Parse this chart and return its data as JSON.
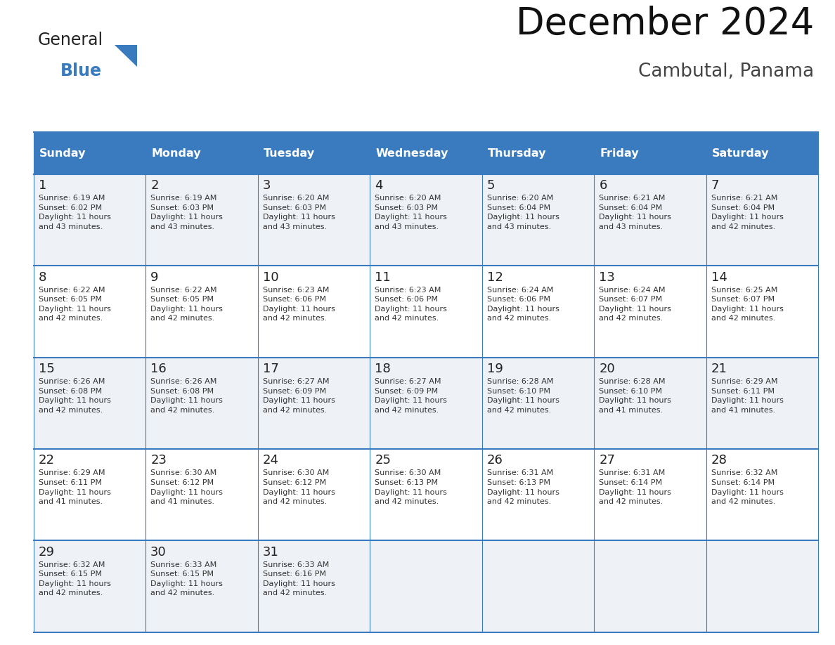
{
  "title": "December 2024",
  "subtitle": "Cambutal, Panama",
  "days_of_week": [
    "Sunday",
    "Monday",
    "Tuesday",
    "Wednesday",
    "Thursday",
    "Friday",
    "Saturday"
  ],
  "header_bg": "#3a7bbf",
  "header_text": "#ffffff",
  "row_bg_odd": "#eef2f7",
  "row_bg_even": "#ffffff",
  "cell_text_color": "#222222",
  "day_num_color": "#222222",
  "grid_line_color": "#3a7bbf",
  "cal_data": [
    [
      {
        "day": 1,
        "sunrise": "6:19 AM",
        "sunset": "6:02 PM",
        "daylight": "11 hours\nand 43 minutes."
      },
      {
        "day": 2,
        "sunrise": "6:19 AM",
        "sunset": "6:03 PM",
        "daylight": "11 hours\nand 43 minutes."
      },
      {
        "day": 3,
        "sunrise": "6:20 AM",
        "sunset": "6:03 PM",
        "daylight": "11 hours\nand 43 minutes."
      },
      {
        "day": 4,
        "sunrise": "6:20 AM",
        "sunset": "6:03 PM",
        "daylight": "11 hours\nand 43 minutes."
      },
      {
        "day": 5,
        "sunrise": "6:20 AM",
        "sunset": "6:04 PM",
        "daylight": "11 hours\nand 43 minutes."
      },
      {
        "day": 6,
        "sunrise": "6:21 AM",
        "sunset": "6:04 PM",
        "daylight": "11 hours\nand 43 minutes."
      },
      {
        "day": 7,
        "sunrise": "6:21 AM",
        "sunset": "6:04 PM",
        "daylight": "11 hours\nand 42 minutes."
      }
    ],
    [
      {
        "day": 8,
        "sunrise": "6:22 AM",
        "sunset": "6:05 PM",
        "daylight": "11 hours\nand 42 minutes."
      },
      {
        "day": 9,
        "sunrise": "6:22 AM",
        "sunset": "6:05 PM",
        "daylight": "11 hours\nand 42 minutes."
      },
      {
        "day": 10,
        "sunrise": "6:23 AM",
        "sunset": "6:06 PM",
        "daylight": "11 hours\nand 42 minutes."
      },
      {
        "day": 11,
        "sunrise": "6:23 AM",
        "sunset": "6:06 PM",
        "daylight": "11 hours\nand 42 minutes."
      },
      {
        "day": 12,
        "sunrise": "6:24 AM",
        "sunset": "6:06 PM",
        "daylight": "11 hours\nand 42 minutes."
      },
      {
        "day": 13,
        "sunrise": "6:24 AM",
        "sunset": "6:07 PM",
        "daylight": "11 hours\nand 42 minutes."
      },
      {
        "day": 14,
        "sunrise": "6:25 AM",
        "sunset": "6:07 PM",
        "daylight": "11 hours\nand 42 minutes."
      }
    ],
    [
      {
        "day": 15,
        "sunrise": "6:26 AM",
        "sunset": "6:08 PM",
        "daylight": "11 hours\nand 42 minutes."
      },
      {
        "day": 16,
        "sunrise": "6:26 AM",
        "sunset": "6:08 PM",
        "daylight": "11 hours\nand 42 minutes."
      },
      {
        "day": 17,
        "sunrise": "6:27 AM",
        "sunset": "6:09 PM",
        "daylight": "11 hours\nand 42 minutes."
      },
      {
        "day": 18,
        "sunrise": "6:27 AM",
        "sunset": "6:09 PM",
        "daylight": "11 hours\nand 42 minutes."
      },
      {
        "day": 19,
        "sunrise": "6:28 AM",
        "sunset": "6:10 PM",
        "daylight": "11 hours\nand 42 minutes."
      },
      {
        "day": 20,
        "sunrise": "6:28 AM",
        "sunset": "6:10 PM",
        "daylight": "11 hours\nand 41 minutes."
      },
      {
        "day": 21,
        "sunrise": "6:29 AM",
        "sunset": "6:11 PM",
        "daylight": "11 hours\nand 41 minutes."
      }
    ],
    [
      {
        "day": 22,
        "sunrise": "6:29 AM",
        "sunset": "6:11 PM",
        "daylight": "11 hours\nand 41 minutes."
      },
      {
        "day": 23,
        "sunrise": "6:30 AM",
        "sunset": "6:12 PM",
        "daylight": "11 hours\nand 41 minutes."
      },
      {
        "day": 24,
        "sunrise": "6:30 AM",
        "sunset": "6:12 PM",
        "daylight": "11 hours\nand 42 minutes."
      },
      {
        "day": 25,
        "sunrise": "6:30 AM",
        "sunset": "6:13 PM",
        "daylight": "11 hours\nand 42 minutes."
      },
      {
        "day": 26,
        "sunrise": "6:31 AM",
        "sunset": "6:13 PM",
        "daylight": "11 hours\nand 42 minutes."
      },
      {
        "day": 27,
        "sunrise": "6:31 AM",
        "sunset": "6:14 PM",
        "daylight": "11 hours\nand 42 minutes."
      },
      {
        "day": 28,
        "sunrise": "6:32 AM",
        "sunset": "6:14 PM",
        "daylight": "11 hours\nand 42 minutes."
      }
    ],
    [
      {
        "day": 29,
        "sunrise": "6:32 AM",
        "sunset": "6:15 PM",
        "daylight": "11 hours\nand 42 minutes."
      },
      {
        "day": 30,
        "sunrise": "6:33 AM",
        "sunset": "6:15 PM",
        "daylight": "11 hours\nand 42 minutes."
      },
      {
        "day": 31,
        "sunrise": "6:33 AM",
        "sunset": "6:16 PM",
        "daylight": "11 hours\nand 42 minutes."
      },
      null,
      null,
      null,
      null
    ]
  ],
  "logo_general_color": "#222222",
  "logo_blue_color": "#3a7bbf",
  "logo_triangle_color": "#3a7bbf"
}
